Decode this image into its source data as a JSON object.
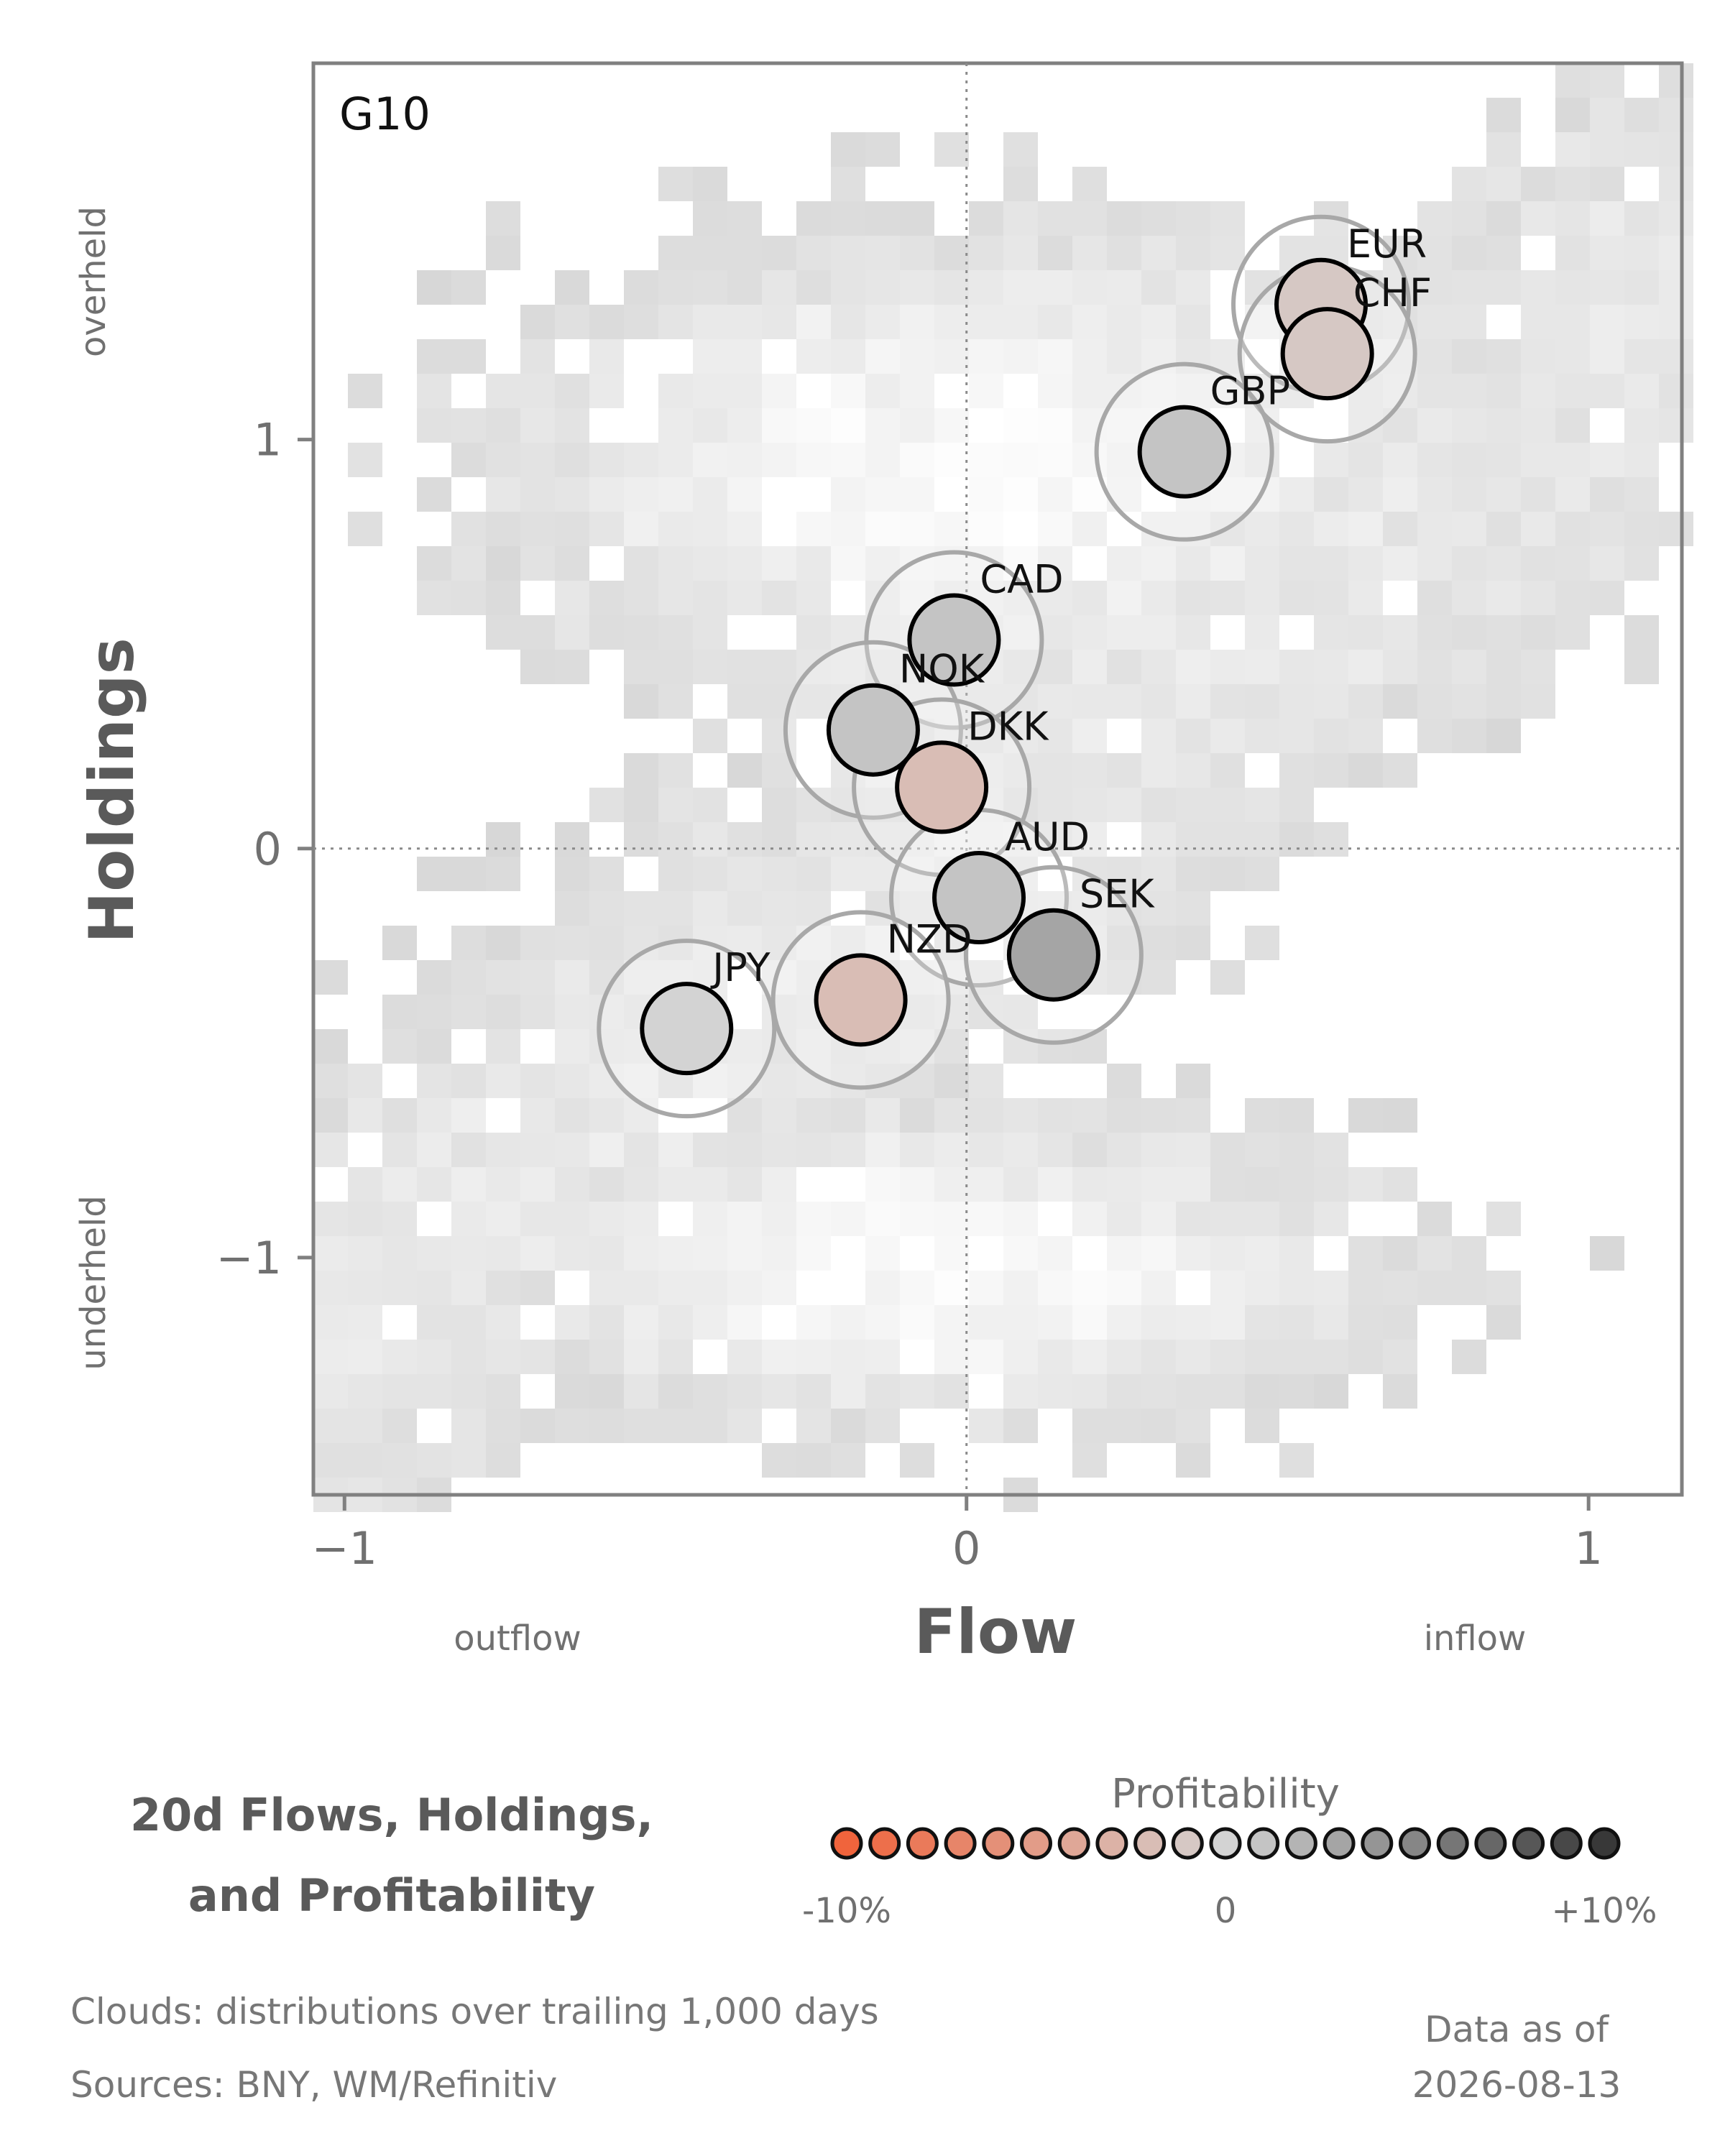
{
  "chart_data": {
    "type": "scatter",
    "panel_label": "G10",
    "xlabel": "Flow",
    "ylabel": "Holdings",
    "x_hint_left": "outflow",
    "x_hint_right": "inflow",
    "y_hint_top": "overheld",
    "y_hint_bottom": "underheld",
    "xlim": [
      -1.05,
      1.15
    ],
    "ylim": [
      -1.58,
      1.92
    ],
    "x_ticks": [
      {
        "value": -1,
        "label": "−1"
      },
      {
        "value": 0,
        "label": "0"
      },
      {
        "value": 1,
        "label": "1"
      }
    ],
    "y_ticks": [
      {
        "value": 1,
        "label": "1"
      },
      {
        "value": 0,
        "label": "0"
      },
      {
        "value": -1,
        "label": "−1"
      }
    ],
    "zero_lines": true,
    "background": "grayscale density heatmap (historical distribution clouds)",
    "points": [
      {
        "label": "EUR",
        "x": 0.57,
        "y": 1.33,
        "profit_pct": -1
      },
      {
        "label": "CHF",
        "x": 0.58,
        "y": 1.21,
        "profit_pct": -1
      },
      {
        "label": "GBP",
        "x": 0.35,
        "y": 0.97,
        "profit_pct": 1
      },
      {
        "label": "CAD",
        "x": -0.02,
        "y": 0.51,
        "profit_pct": 1
      },
      {
        "label": "NOK",
        "x": -0.15,
        "y": 0.29,
        "profit_pct": 1
      },
      {
        "label": "DKK",
        "x": -0.04,
        "y": 0.15,
        "profit_pct": -2
      },
      {
        "label": "AUD",
        "x": 0.02,
        "y": -0.12,
        "profit_pct": 1
      },
      {
        "label": "SEK",
        "x": 0.14,
        "y": -0.26,
        "profit_pct": 3
      },
      {
        "label": "NZD",
        "x": -0.17,
        "y": -0.37,
        "profit_pct": -2
      },
      {
        "label": "JPY",
        "x": -0.45,
        "y": -0.44,
        "profit_pct": 0
      }
    ]
  },
  "legend": {
    "title": "Profitability",
    "min_label": "-10%",
    "mid_label": "0",
    "max_label": "+10%",
    "low_color": "#f0643c",
    "mid_color": "#d3d3d3",
    "high_color": "#383838"
  },
  "block_title": {
    "line1": "20d Flows, Holdings,",
    "line2": "and Profitability"
  },
  "notes": {
    "clouds": "Clouds:  distributions over trailing 1,000 days",
    "sources": "Sources:  BNY, WM/Refinitiv"
  },
  "as_of": {
    "label": "Data as of",
    "date": "2026-08-13"
  }
}
